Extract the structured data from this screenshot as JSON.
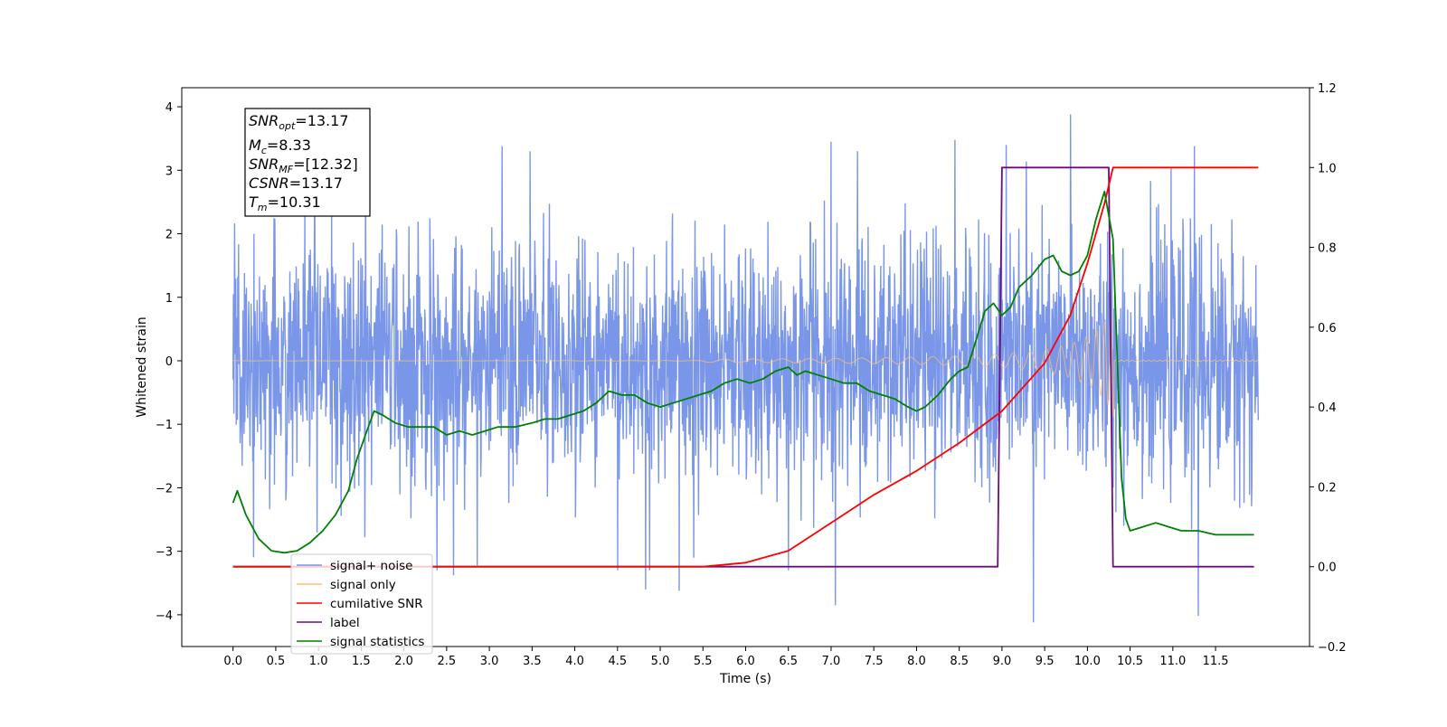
{
  "chart_data": {
    "type": "line",
    "xlabel": "Time (s)",
    "ylabel_left": "Whitened strain",
    "ylabel_right": "",
    "xlim": [
      -0.6,
      12.6
    ],
    "ylim_left": [
      -4.5,
      4.3
    ],
    "ylim_right": [
      -0.2,
      1.2
    ],
    "x_ticks": [
      0.0,
      0.5,
      1.0,
      1.5,
      2.0,
      2.5,
      3.0,
      3.5,
      4.0,
      4.5,
      5.0,
      5.5,
      6.0,
      6.5,
      7.0,
      7.5,
      8.0,
      8.5,
      9.0,
      9.5,
      10.0,
      10.5,
      11.0,
      11.5
    ],
    "x_tick_labels": [
      "0.0",
      "0.5",
      "1.0",
      "1.5",
      "2.0",
      "2.5",
      "3.0",
      "3.5",
      "4.0",
      "4.5",
      "5.0",
      "5.5",
      "6.0",
      "6.5",
      "7.0",
      "7.5",
      "8.0",
      "8.5",
      "9.0",
      "9.5",
      "10.0",
      "10.5",
      "11.0",
      "11.5"
    ],
    "y_ticks_left": [
      4,
      3,
      2,
      1,
      0,
      -1,
      -2,
      -3,
      -4
    ],
    "y_tick_labels_left": [
      "4",
      "3",
      "2",
      "1",
      "0",
      "−1",
      "−2",
      "−3",
      "−4"
    ],
    "y_ticks_right": [
      1.2,
      1.0,
      0.8,
      0.6,
      0.4,
      0.2,
      0.0,
      -0.2
    ],
    "y_tick_labels_right": [
      "1.2",
      "1.0",
      "0.8",
      "0.6",
      "0.4",
      "0.2",
      "0.0",
      "−0.2"
    ],
    "grid": false,
    "legend_position": "lower-left",
    "info_box": {
      "snr_opt": {
        "base": "SNR",
        "sub": "opt",
        "value": "=13.17"
      },
      "mc": {
        "base": "M",
        "sub": "c",
        "value": "=8.33"
      },
      "snr_mf": {
        "base": "SNR",
        "sub": "MF",
        "value": "=[12.32]"
      },
      "csnr": {
        "base": "CSNR",
        "value": "=13.17"
      },
      "tm": {
        "base": "T",
        "sub": "m",
        "value": "=10.31"
      }
    },
    "series": [
      {
        "name": "signal+ noise",
        "axis": "left",
        "color": "#7a96e8",
        "kind": "noise",
        "x_range": [
          0.0,
          12.0
        ],
        "noise_std": 0.95,
        "spikes": [
          {
            "x": 9.8,
            "y": 3.88
          },
          {
            "x": 9.37,
            "y": -4.12
          },
          {
            "x": 11.3,
            "y": -4.02
          },
          {
            "x": 7.05,
            "y": -3.85
          },
          {
            "x": 4.83,
            "y": -3.6
          },
          {
            "x": 5.22,
            "y": -3.62
          },
          {
            "x": 2.58,
            "y": -3.38
          },
          {
            "x": 3.15,
            "y": 3.38
          },
          {
            "x": 7.0,
            "y": 3.45
          },
          {
            "x": 1.55,
            "y": 3.52
          },
          {
            "x": 9.05,
            "y": 3.4
          },
          {
            "x": 8.45,
            "y": 3.48
          },
          {
            "x": 11.25,
            "y": 3.38
          },
          {
            "x": 6.5,
            "y": -3.3
          },
          {
            "x": 4.5,
            "y": -3.3
          }
        ]
      },
      {
        "name": "signal only",
        "axis": "left",
        "color": "#ffbf6b",
        "kind": "chirp",
        "x_range": [
          0.0,
          12.0
        ],
        "merger_time": 10.31,
        "peak_amplitude": 0.95
      },
      {
        "name": "cumilative SNR",
        "axis": "right",
        "color": "#ff0000",
        "x": [
          0.0,
          5.0,
          5.5,
          6.0,
          6.5,
          7.0,
          7.5,
          8.0,
          8.5,
          9.0,
          9.5,
          9.8,
          10.0,
          10.2,
          10.3,
          12.0
        ],
        "y": [
          0.0,
          0.0,
          0.0,
          0.01,
          0.04,
          0.11,
          0.18,
          0.24,
          0.31,
          0.39,
          0.51,
          0.63,
          0.76,
          0.91,
          1.0,
          1.0
        ]
      },
      {
        "name": "label",
        "axis": "right",
        "color": "#6a0f7a",
        "x": [
          0.0,
          8.95,
          9.0,
          10.25,
          10.3,
          11.95
        ],
        "y": [
          0.0,
          0.0,
          1.0,
          1.0,
          0.0,
          0.0
        ]
      },
      {
        "name": "signal statistics",
        "axis": "right",
        "color": "#008000",
        "x": [
          0.0,
          0.05,
          0.15,
          0.3,
          0.45,
          0.6,
          0.75,
          0.9,
          1.05,
          1.2,
          1.35,
          1.45,
          1.55,
          1.65,
          1.75,
          1.9,
          2.05,
          2.2,
          2.35,
          2.5,
          2.65,
          2.8,
          2.95,
          3.1,
          3.3,
          3.5,
          3.65,
          3.8,
          3.95,
          4.1,
          4.25,
          4.4,
          4.55,
          4.7,
          4.85,
          5.0,
          5.15,
          5.3,
          5.45,
          5.6,
          5.75,
          5.9,
          6.05,
          6.2,
          6.35,
          6.5,
          6.6,
          6.7,
          6.85,
          7.0,
          7.15,
          7.3,
          7.45,
          7.6,
          7.75,
          7.9,
          8.0,
          8.1,
          8.25,
          8.4,
          8.5,
          8.6,
          8.7,
          8.8,
          8.9,
          9.0,
          9.1,
          9.2,
          9.35,
          9.5,
          9.6,
          9.7,
          9.8,
          9.9,
          10.0,
          10.1,
          10.2,
          10.3,
          10.35,
          10.4,
          10.45,
          10.5,
          10.65,
          10.8,
          10.95,
          11.1,
          11.3,
          11.5,
          11.7,
          11.9,
          11.95
        ],
        "y": [
          0.16,
          0.19,
          0.13,
          0.07,
          0.04,
          0.035,
          0.04,
          0.06,
          0.09,
          0.13,
          0.19,
          0.27,
          0.33,
          0.39,
          0.38,
          0.36,
          0.35,
          0.35,
          0.35,
          0.33,
          0.34,
          0.33,
          0.34,
          0.35,
          0.35,
          0.36,
          0.37,
          0.37,
          0.38,
          0.39,
          0.41,
          0.44,
          0.43,
          0.43,
          0.41,
          0.4,
          0.41,
          0.42,
          0.43,
          0.44,
          0.46,
          0.47,
          0.46,
          0.47,
          0.49,
          0.5,
          0.48,
          0.49,
          0.48,
          0.47,
          0.46,
          0.46,
          0.44,
          0.43,
          0.42,
          0.4,
          0.39,
          0.4,
          0.43,
          0.47,
          0.49,
          0.5,
          0.57,
          0.64,
          0.66,
          0.63,
          0.65,
          0.7,
          0.73,
          0.77,
          0.78,
          0.74,
          0.73,
          0.74,
          0.78,
          0.87,
          0.94,
          0.82,
          0.52,
          0.22,
          0.12,
          0.09,
          0.1,
          0.11,
          0.1,
          0.09,
          0.09,
          0.08,
          0.08,
          0.08,
          0.08
        ]
      }
    ]
  }
}
